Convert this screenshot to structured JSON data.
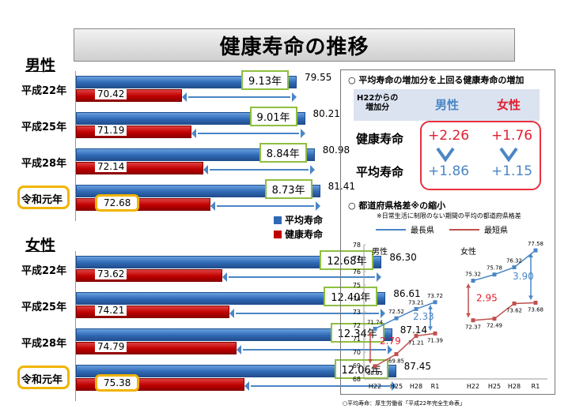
{
  "title": "健康寿命の推移",
  "left": {
    "legend": [
      {
        "label": "平均寿命",
        "color": "#2f69b5"
      },
      {
        "label": "健康寿命",
        "color": "#c00000"
      }
    ],
    "male": {
      "label": "男性",
      "rows": [
        {
          "year": "平成22年",
          "avg": "79.55",
          "healthy": "70.42",
          "diff": "9.13年"
        },
        {
          "year": "平成25年",
          "avg": "80.21",
          "healthy": "71.19",
          "diff": "9.01年"
        },
        {
          "year": "平成28年",
          "avg": "80.98",
          "healthy": "72.14",
          "diff": "8.84年"
        },
        {
          "year": "令和元年",
          "avg": "81.41",
          "healthy": "72.68",
          "diff": "8.73年"
        }
      ]
    },
    "female": {
      "label": "女性",
      "rows": [
        {
          "year": "平成22年",
          "avg": "86.30",
          "healthy": "73.62",
          "diff": "12.68年"
        },
        {
          "year": "平成25年",
          "avg": "86.61",
          "healthy": "74.21",
          "diff": "12.40年"
        },
        {
          "year": "平成28年",
          "avg": "87.14",
          "healthy": "74.79",
          "diff": "12.34年"
        },
        {
          "year": "令和元年",
          "avg": "87.45",
          "healthy": "75.38",
          "diff": "12.06年"
        }
      ]
    }
  },
  "right": {
    "section1_title": "○ 平均寿命の増加分を上回る健康寿命の増加",
    "table": {
      "corner": "H22からの\n増加分",
      "col_male": "男性",
      "col_female": "女性",
      "row1_label": "健康寿命",
      "row2_label": "平均寿命",
      "male_healthy": "+2.26",
      "female_healthy": "+1.76",
      "male_avg": "+1.86",
      "female_avg": "+1.15"
    },
    "section2_title": "○ 都道府県格差※の縮小",
    "section2_note": "※日常生活に制限のない期間の平均の都道府県格差",
    "legend_max": "最長県",
    "legend_min": "最短県",
    "male_label": "男性",
    "female_label": "女性",
    "male_gap_max": "2.79",
    "male_gap_min": "2.33",
    "female_gap_max": "2.95",
    "female_gap_min": "3.90"
  },
  "chart_data": [
    {
      "type": "bar",
      "title": "健康寿命の推移",
      "groups": [
        "男性",
        "女性"
      ],
      "categories": [
        "平成22年",
        "平成25年",
        "平成28年",
        "令和元年"
      ],
      "series": [
        {
          "name": "平均寿命",
          "group": "男性",
          "values": [
            79.55,
            80.21,
            80.98,
            81.41
          ]
        },
        {
          "name": "健康寿命",
          "group": "男性",
          "values": [
            70.42,
            71.19,
            72.14,
            72.68
          ]
        },
        {
          "name": "平均寿命",
          "group": "女性",
          "values": [
            86.3,
            86.61,
            87.14,
            87.45
          ]
        },
        {
          "name": "健康寿命",
          "group": "女性",
          "values": [
            73.62,
            74.21,
            74.79,
            75.38
          ]
        }
      ],
      "orientation": "horizontal"
    },
    {
      "type": "line",
      "categories": [
        "H22",
        "H25",
        "H28",
        "R1"
      ],
      "y_ticks": [
        68,
        69,
        70,
        71,
        72,
        73,
        74,
        75,
        76,
        77,
        78
      ],
      "ylim": [
        68,
        78
      ],
      "series": [
        {
          "name": "最長県",
          "group": "男性",
          "color": "#4a86c5",
          "values": [
            71.74,
            72.52,
            73.21,
            73.72
          ]
        },
        {
          "name": "最短県",
          "group": "男性",
          "color": "#c0504d",
          "values": [
            68.95,
            69.85,
            71.21,
            71.39
          ]
        },
        {
          "name": "最長県",
          "group": "女性",
          "color": "#4a86c5",
          "values": [
            75.32,
            75.78,
            76.32,
            77.58
          ]
        },
        {
          "name": "最短県",
          "group": "女性",
          "color": "#c0504d",
          "values": [
            72.37,
            72.49,
            73.62,
            73.68
          ]
        }
      ]
    }
  ],
  "footer": "○平均寿命：厚生労働省「平成22年完全生命表」"
}
